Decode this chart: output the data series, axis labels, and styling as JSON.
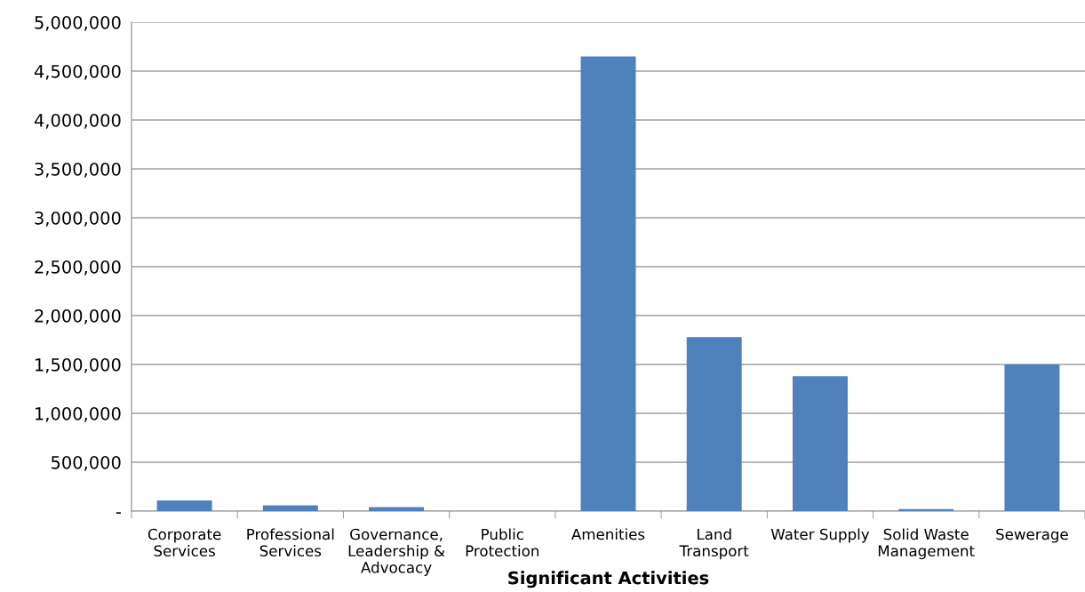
{
  "chart_data": {
    "type": "bar",
    "xlabel": "Significant Activities",
    "categories": [
      "Corporate\nServices",
      "Professional\nServices",
      "Governance,\nLeadership &\nAdvocacy",
      "Public\nProtection",
      "Amenities",
      "Land\nTransport",
      "Water Supply",
      "Solid Waste\nManagement",
      "Sewerage"
    ],
    "values": [
      110000,
      60000,
      40000,
      0,
      4650000,
      1780000,
      1380000,
      20000,
      1500000
    ],
    "color": "#4f81bd",
    "ylim": [
      0,
      5000000
    ],
    "yticks": [
      {
        "value": 0,
        "label": "-"
      },
      {
        "value": 500000,
        "label": "500,000"
      },
      {
        "value": 1000000,
        "label": "1,000,000"
      },
      {
        "value": 1500000,
        "label": "1,500,000"
      },
      {
        "value": 2000000,
        "label": "2,000,000"
      },
      {
        "value": 2500000,
        "label": "2,500,000"
      },
      {
        "value": 3000000,
        "label": "3,000,000"
      },
      {
        "value": 3500000,
        "label": "3,500,000"
      },
      {
        "value": 4000000,
        "label": "4,000,000"
      },
      {
        "value": 4500000,
        "label": "4,500,000"
      },
      {
        "value": 5000000,
        "label": "5,000,000"
      }
    ],
    "grid": "y"
  }
}
